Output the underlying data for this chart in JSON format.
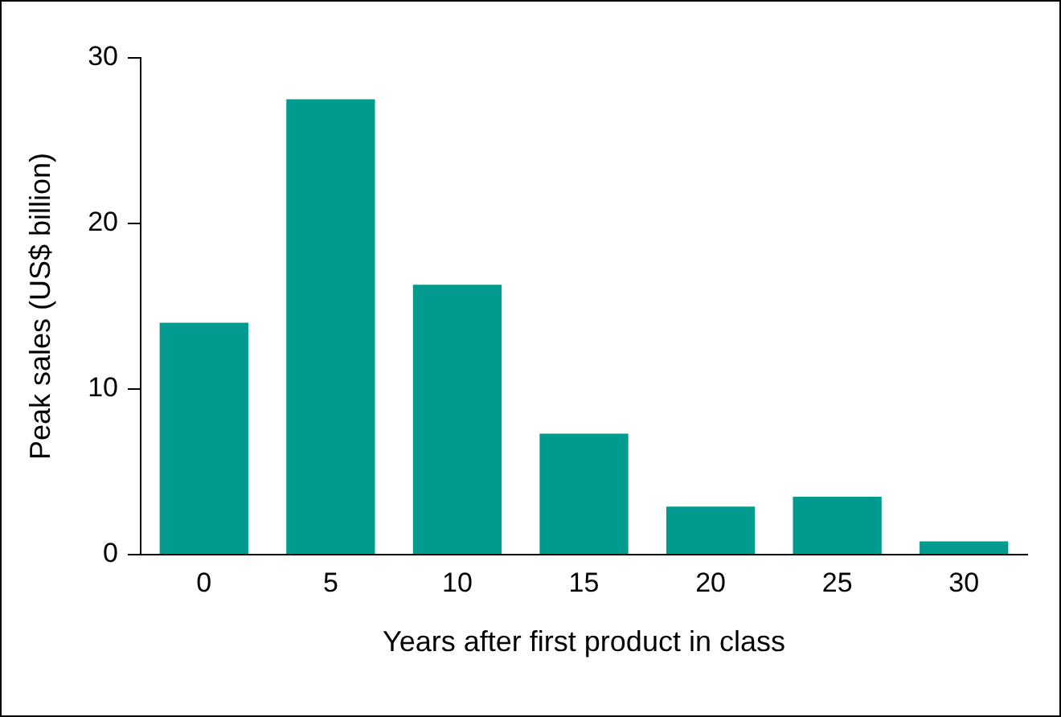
{
  "chart_data": {
    "type": "bar",
    "xlabel": "Years after first product in class",
    "ylabel": "Peak sales (US$ billion)",
    "categories": [
      "0",
      "5",
      "10",
      "15",
      "20",
      "25",
      "30"
    ],
    "values": [
      14,
      27.5,
      16.3,
      7.3,
      2.9,
      3.5,
      0.8
    ],
    "color": "#009a8e",
    "ylim": [
      0,
      30
    ],
    "yticks": [
      0,
      10,
      20,
      30
    ],
    "grid": false,
    "legend": false
  }
}
